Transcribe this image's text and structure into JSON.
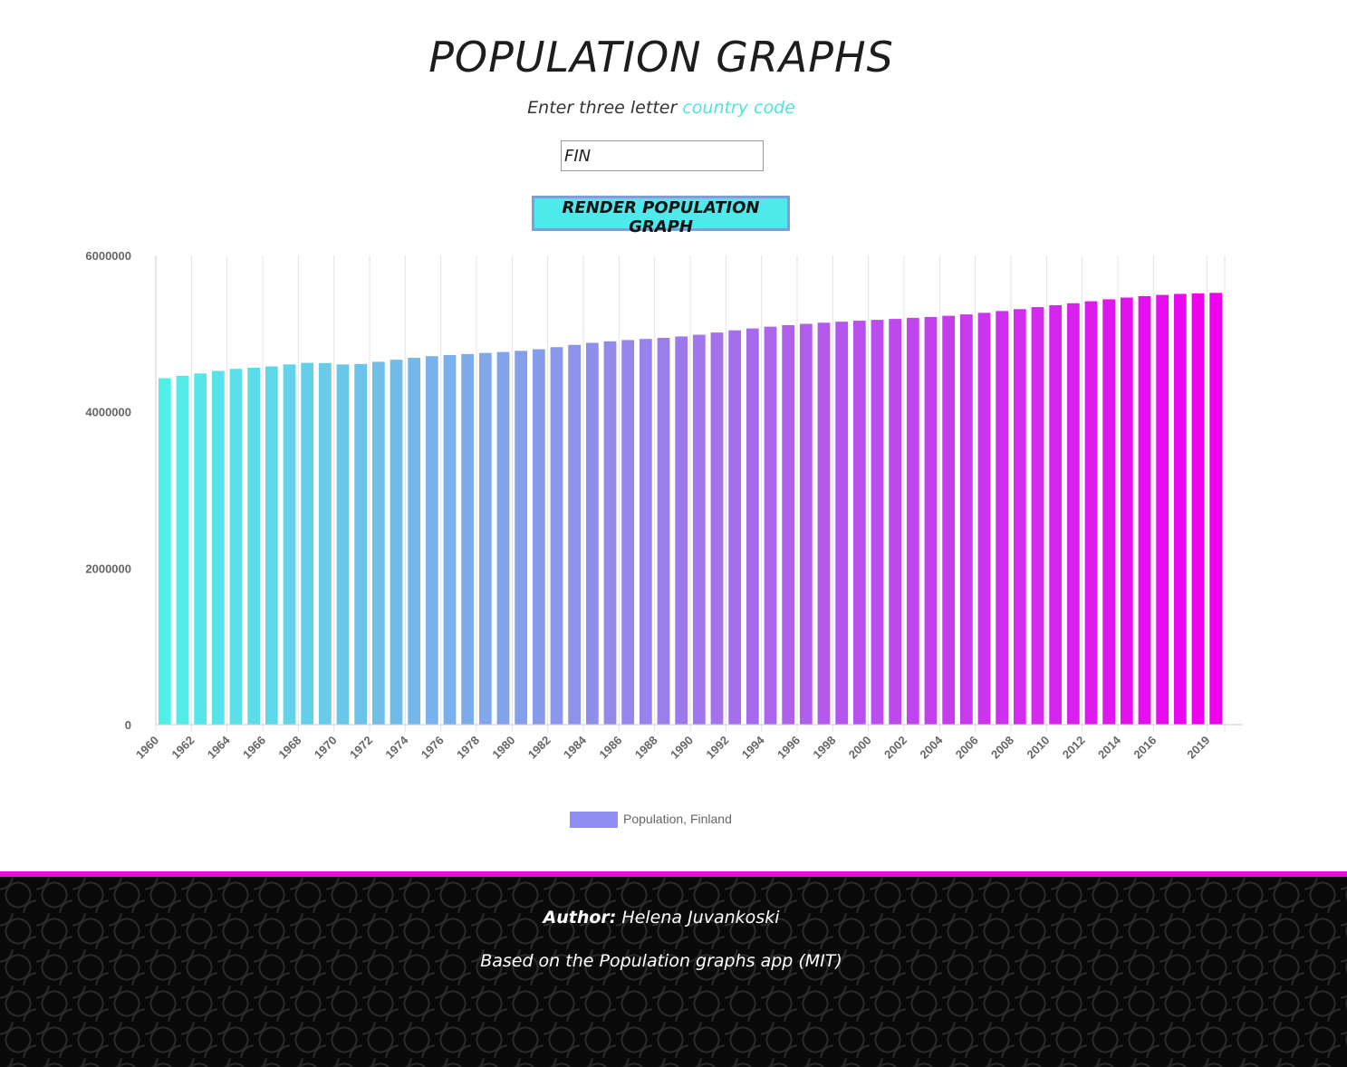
{
  "header": {
    "title": "POPULATION GRAPHS",
    "subtitle_prefix": "Enter three letter",
    "subtitle_link": "country code"
  },
  "form": {
    "country_code_value": "FIN",
    "render_button_label": "RENDER POPULATION GRAPH",
    "button_color": "#4ee9ea"
  },
  "colors": {
    "gradient_start": "#4ef0e8",
    "gradient_end": "#ef00ef",
    "legend_swatch": "#918ef2",
    "footer_accent": "#e410e4"
  },
  "chart_data": {
    "type": "bar",
    "series": [
      {
        "name": "Population, Finland",
        "x": [
          1960,
          1961,
          1962,
          1963,
          1964,
          1965,
          1966,
          1967,
          1968,
          1969,
          1970,
          1971,
          1972,
          1973,
          1974,
          1975,
          1976,
          1977,
          1978,
          1979,
          1980,
          1981,
          1982,
          1983,
          1984,
          1985,
          1986,
          1987,
          1988,
          1989,
          1990,
          1991,
          1992,
          1993,
          1994,
          1995,
          1996,
          1997,
          1998,
          1999,
          2000,
          2001,
          2002,
          2003,
          2004,
          2005,
          2006,
          2007,
          2008,
          2009,
          2010,
          2011,
          2012,
          2013,
          2014,
          2015,
          2016,
          2017,
          2018,
          2019
        ],
        "values": [
          4430000,
          4461000,
          4491000,
          4523000,
          4549000,
          4564000,
          4581000,
          4606000,
          4626000,
          4624000,
          4606000,
          4612000,
          4640000,
          4666000,
          4690000,
          4712000,
          4726000,
          4739000,
          4753000,
          4765000,
          4780000,
          4800000,
          4827000,
          4856000,
          4882000,
          4902000,
          4918000,
          4932000,
          4946000,
          4964000,
          4986000,
          5014000,
          5042000,
          5066000,
          5089000,
          5108000,
          5125000,
          5140000,
          5153000,
          5165000,
          5176000,
          5188000,
          5201000,
          5213000,
          5228000,
          5246000,
          5266000,
          5289000,
          5313000,
          5339000,
          5363000,
          5388000,
          5414000,
          5439000,
          5461000,
          5479000,
          5495000,
          5508000,
          5515000,
          5521000
        ]
      }
    ],
    "y_ticks": [
      "0",
      "2000000",
      "4000000",
      "6000000"
    ],
    "x_tick_labels": [
      "1960",
      "1962",
      "1964",
      "1966",
      "1968",
      "1970",
      "1972",
      "1974",
      "1976",
      "1978",
      "1980",
      "1982",
      "1984",
      "1986",
      "1988",
      "1990",
      "1992",
      "1994",
      "1996",
      "1998",
      "2000",
      "2002",
      "2004",
      "2006",
      "2008",
      "2010",
      "2012",
      "2014",
      "2016",
      "2019"
    ],
    "ylim": [
      0,
      6000000
    ],
    "legend": {
      "label": "Population, Finland",
      "position": "bottom-center"
    },
    "grid": "vertical"
  },
  "footer": {
    "author_label": "Author:",
    "author_name": "Helena Juvankoski",
    "based_on": "Based on the Population graphs app (MIT)"
  }
}
